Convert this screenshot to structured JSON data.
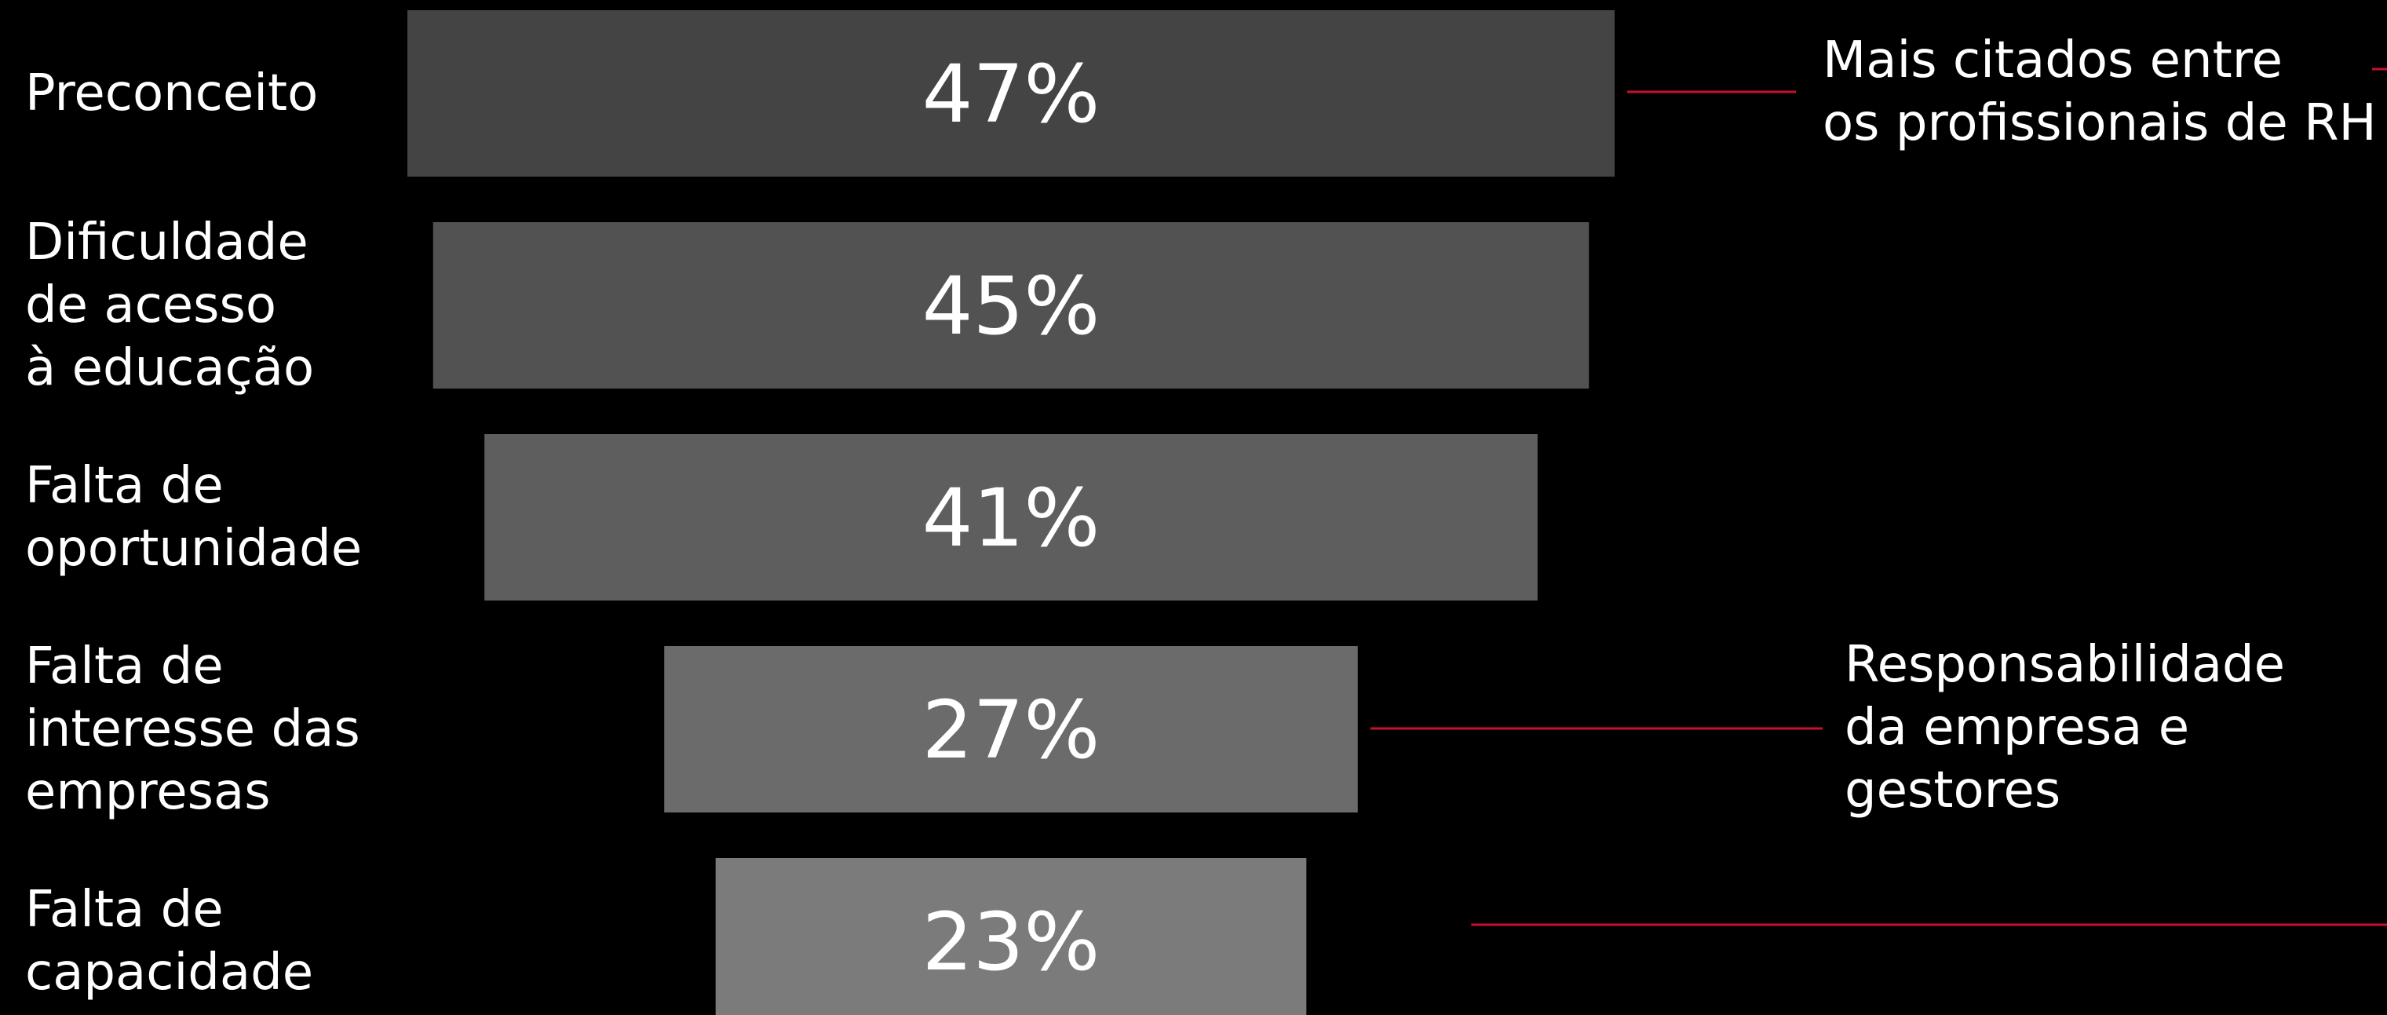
{
  "chart_data": {
    "type": "bar",
    "orientation": "horizontal-funnel",
    "title": "",
    "xlabel": "",
    "ylabel": "",
    "xlim": [
      0,
      47
    ],
    "grid": false,
    "legend": "none",
    "categories": [
      [
        "Preconceito"
      ],
      [
        "Dificuldade",
        "de acesso",
        "à educação"
      ],
      [
        "Falta de",
        "oportunidade"
      ],
      [
        "Falta de",
        "interesse das",
        "empresas"
      ],
      [
        "Falta de",
        "capacidade"
      ]
    ],
    "values": [
      47,
      45,
      41,
      27,
      23
    ],
    "value_labels": [
      "47%",
      "45%",
      "41%",
      "27%",
      "23%"
    ],
    "bar_colors": [
      "#444444",
      "#525252",
      "#5e5e5e",
      "#6b6b6b",
      "#7b7b7b"
    ],
    "annotations": [
      {
        "lines": [
          "Mais citados entre",
          "os profissionais de RH"
        ],
        "applies_to": [
          0,
          1,
          2
        ]
      },
      {
        "lines": [
          "Responsabilidade",
          "da empresa e",
          "gestores"
        ],
        "applies_to": [
          3,
          4
        ]
      }
    ],
    "connector_color": "#c8102e"
  }
}
